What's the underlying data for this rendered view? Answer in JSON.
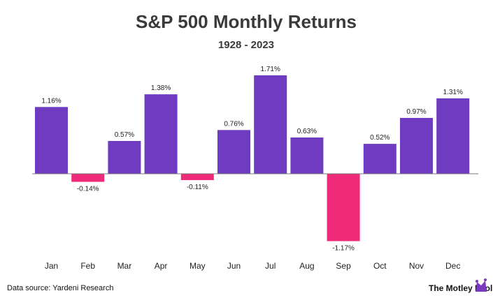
{
  "chart_data": {
    "type": "bar",
    "title": "S&P 500 Monthly Returns",
    "subtitle": "1928 - 2023",
    "categories": [
      "Jan",
      "Feb",
      "Mar",
      "Apr",
      "May",
      "Jun",
      "Jul",
      "Aug",
      "Sep",
      "Oct",
      "Nov",
      "Dec"
    ],
    "values": [
      1.16,
      -0.14,
      0.57,
      1.38,
      -0.11,
      0.76,
      1.71,
      0.63,
      -1.17,
      0.52,
      0.97,
      1.31
    ],
    "value_labels": [
      "1.16%",
      "-0.14%",
      "0.57%",
      "1.38%",
      "-0.11%",
      "0.76%",
      "1.71%",
      "0.63%",
      "-1.17%",
      "0.52%",
      "0.97%",
      "1.31%"
    ],
    "unit": "%",
    "xlabel": "",
    "ylabel": "",
    "grid": false,
    "colors": {
      "positive": "#6f3bc0",
      "negative": "#ef2a78",
      "baseline": "#777777",
      "logo": "#7a3ac0"
    }
  },
  "footer": {
    "source": "Data source: Yardeni Research",
    "brand": "The Motley Fool"
  },
  "logo": {
    "icon": "jester-cap-icon"
  }
}
